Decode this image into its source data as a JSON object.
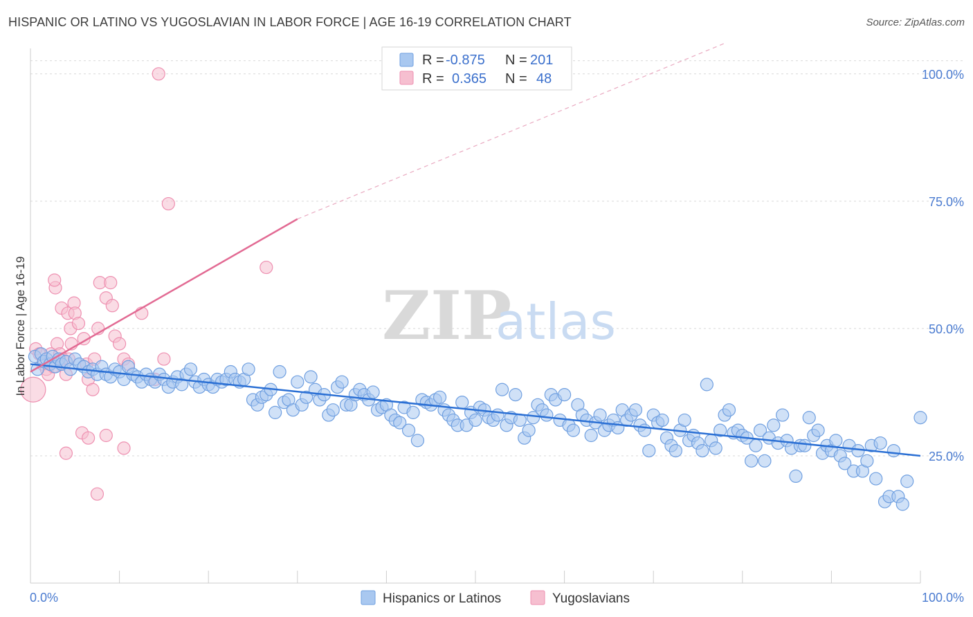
{
  "title": "HISPANIC OR LATINO VS YUGOSLAVIAN IN LABOR FORCE | AGE 16-19 CORRELATION CHART",
  "source": "Source: ZipAtlas.com",
  "watermark": {
    "zip": "ZIP",
    "atlas": "atlas"
  },
  "colors": {
    "blue_fill": "#a9c8f0",
    "blue_stroke": "#6f9fe0",
    "blue_line": "#2a6fd4",
    "pink_fill": "#f6bfd0",
    "pink_stroke": "#ee8fb0",
    "pink_line": "#e26a93",
    "tick_text": "#4a7bd0",
    "grid": "#d8d8d8"
  },
  "legend": {
    "rows": [
      {
        "r_label": "R =",
        "r_value": "-0.875",
        "n_label": "N =",
        "n_value": "201"
      },
      {
        "r_label": "R =",
        "r_value": "0.365",
        "n_label": "N =",
        "n_value": "48"
      }
    ]
  },
  "chart_data": {
    "type": "scatter",
    "ylabel": "In Labor Force | Age 16-19",
    "xlabel": "",
    "xlim": [
      0,
      100
    ],
    "ylim": [
      0,
      105
    ],
    "x_tick_labels": [
      "0.0%",
      "100.0%"
    ],
    "y_ticks": [
      25,
      50,
      75,
      100
    ],
    "y_tick_labels": [
      "25.0%",
      "50.0%",
      "75.0%",
      "100.0%"
    ],
    "grid": true,
    "legend_placement": "top-center",
    "series": [
      {
        "name": "Hispanics or Latinos",
        "trend": {
          "x": [
            0,
            100
          ],
          "y": [
            43.0,
            25.0
          ]
        },
        "points": [
          [
            0.5,
            44.5
          ],
          [
            0.8,
            42
          ],
          [
            1.2,
            45
          ],
          [
            1.5,
            43.5
          ],
          [
            1.8,
            44
          ],
          [
            2.2,
            43
          ],
          [
            2.5,
            44.5
          ],
          [
            2.8,
            42.5
          ],
          [
            3.2,
            44
          ],
          [
            3.5,
            43
          ],
          [
            4,
            43.5
          ],
          [
            4.5,
            42
          ],
          [
            5,
            44
          ],
          [
            5.5,
            43
          ],
          [
            6,
            42.5
          ],
          [
            6.5,
            41.5
          ],
          [
            7,
            42
          ],
          [
            7.5,
            41
          ],
          [
            8,
            42.5
          ],
          [
            8.5,
            41
          ],
          [
            9,
            40.5
          ],
          [
            9.5,
            42
          ],
          [
            10,
            41.5
          ],
          [
            10.5,
            40
          ],
          [
            11,
            42.5
          ],
          [
            11.5,
            41
          ],
          [
            12,
            40.5
          ],
          [
            12.5,
            39.5
          ],
          [
            13,
            41
          ],
          [
            13.5,
            40
          ],
          [
            14,
            39.5
          ],
          [
            14.5,
            41
          ],
          [
            15,
            40
          ],
          [
            15.5,
            38.5
          ],
          [
            16,
            39.5
          ],
          [
            16.5,
            40.5
          ],
          [
            17,
            39
          ],
          [
            17.5,
            41
          ],
          [
            18,
            42
          ],
          [
            18.5,
            39.5
          ],
          [
            19,
            38.5
          ],
          [
            19.5,
            40
          ],
          [
            20,
            39
          ],
          [
            20.5,
            38.5
          ],
          [
            21,
            40
          ],
          [
            21.5,
            39.5
          ],
          [
            22,
            40
          ],
          [
            22.5,
            41.5
          ],
          [
            23,
            40
          ],
          [
            23.5,
            39.5
          ],
          [
            24,
            40
          ],
          [
            24.5,
            42
          ],
          [
            25,
            36
          ],
          [
            25.5,
            35
          ],
          [
            26,
            36.5
          ],
          [
            26.5,
            37
          ],
          [
            27,
            38
          ],
          [
            27.5,
            33.5
          ],
          [
            28,
            41.5
          ],
          [
            28.5,
            35.5
          ],
          [
            29,
            36
          ],
          [
            29.5,
            34
          ],
          [
            30,
            39.5
          ],
          [
            30.5,
            35
          ],
          [
            31,
            36.5
          ],
          [
            31.5,
            40.5
          ],
          [
            32,
            38
          ],
          [
            32.5,
            36
          ],
          [
            33,
            37
          ],
          [
            33.5,
            33
          ],
          [
            34,
            34
          ],
          [
            34.5,
            38.5
          ],
          [
            35,
            39.5
          ],
          [
            35.5,
            35
          ],
          [
            36,
            35
          ],
          [
            36.5,
            37
          ],
          [
            37,
            38
          ],
          [
            37.5,
            37
          ],
          [
            38,
            36
          ],
          [
            38.5,
            37.5
          ],
          [
            39,
            34
          ],
          [
            39.5,
            34.5
          ],
          [
            40,
            35
          ],
          [
            40.5,
            33
          ],
          [
            41,
            32
          ],
          [
            41.5,
            31.5
          ],
          [
            42,
            34.5
          ],
          [
            42.5,
            30
          ],
          [
            43,
            33.5
          ],
          [
            43.5,
            28
          ],
          [
            44,
            36
          ],
          [
            44.5,
            35.5
          ],
          [
            45,
            35
          ],
          [
            45.5,
            36
          ],
          [
            46,
            36.5
          ],
          [
            46.5,
            34
          ],
          [
            47,
            33
          ],
          [
            47.5,
            32
          ],
          [
            48,
            31
          ],
          [
            48.5,
            35.5
          ],
          [
            49,
            31
          ],
          [
            49.5,
            33.5
          ],
          [
            50,
            32
          ],
          [
            50.5,
            34.5
          ],
          [
            51,
            34
          ],
          [
            51.5,
            32.5
          ],
          [
            52,
            32
          ],
          [
            52.5,
            33
          ],
          [
            53,
            38
          ],
          [
            53.5,
            31
          ],
          [
            54,
            32.5
          ],
          [
            54.5,
            37
          ],
          [
            55,
            32
          ],
          [
            55.5,
            28.5
          ],
          [
            56,
            30
          ],
          [
            56.5,
            32.5
          ],
          [
            57,
            35
          ],
          [
            57.5,
            34
          ],
          [
            58,
            33
          ],
          [
            58.5,
            37
          ],
          [
            59,
            36
          ],
          [
            59.5,
            32
          ],
          [
            60,
            37
          ],
          [
            60.5,
            31
          ],
          [
            61,
            30
          ],
          [
            61.5,
            35
          ],
          [
            62,
            33
          ],
          [
            62.5,
            32
          ],
          [
            63,
            29
          ],
          [
            63.5,
            31.5
          ],
          [
            64,
            33
          ],
          [
            64.5,
            30
          ],
          [
            65,
            31
          ],
          [
            65.5,
            32
          ],
          [
            66,
            30.5
          ],
          [
            66.5,
            34
          ],
          [
            67,
            32
          ],
          [
            67.5,
            33
          ],
          [
            68,
            34
          ],
          [
            68.5,
            31
          ],
          [
            69,
            30
          ],
          [
            69.5,
            26
          ],
          [
            70,
            33
          ],
          [
            70.5,
            31.5
          ],
          [
            71,
            32
          ],
          [
            71.5,
            28.5
          ],
          [
            72,
            27
          ],
          [
            72.5,
            26
          ],
          [
            73,
            30
          ],
          [
            73.5,
            32
          ],
          [
            74,
            28
          ],
          [
            74.5,
            29
          ],
          [
            75,
            27.5
          ],
          [
            75.5,
            26
          ],
          [
            76,
            39
          ],
          [
            76.5,
            28
          ],
          [
            77,
            26.5
          ],
          [
            77.5,
            30
          ],
          [
            78,
            33
          ],
          [
            78.5,
            34
          ],
          [
            79,
            29.5
          ],
          [
            79.5,
            30
          ],
          [
            80,
            29
          ],
          [
            80.5,
            28.5
          ],
          [
            81,
            24
          ],
          [
            81.5,
            27
          ],
          [
            82,
            30
          ],
          [
            82.5,
            24
          ],
          [
            83,
            28.5
          ],
          [
            83.5,
            31
          ],
          [
            84,
            27.5
          ],
          [
            84.5,
            33
          ],
          [
            85,
            28
          ],
          [
            85.5,
            26.5
          ],
          [
            86,
            21
          ],
          [
            86.5,
            27
          ],
          [
            87,
            27
          ],
          [
            87.5,
            32.5
          ],
          [
            88,
            29
          ],
          [
            88.5,
            30
          ],
          [
            89,
            25.5
          ],
          [
            89.5,
            27
          ],
          [
            90,
            26
          ],
          [
            90.5,
            28
          ],
          [
            91,
            25
          ],
          [
            91.5,
            23.5
          ],
          [
            92,
            27
          ],
          [
            92.5,
            22
          ],
          [
            93,
            26
          ],
          [
            93.5,
            22
          ],
          [
            94,
            24
          ],
          [
            94.5,
            27
          ],
          [
            95,
            20.5
          ],
          [
            95.5,
            27.5
          ],
          [
            96,
            16
          ],
          [
            96.5,
            17
          ],
          [
            97,
            26
          ],
          [
            97.5,
            17
          ],
          [
            98,
            15.5
          ],
          [
            98.5,
            20
          ],
          [
            100,
            32.5
          ]
        ]
      },
      {
        "name": "Yugoslavians",
        "trend": {
          "x": [
            0,
            30
          ],
          "y": [
            41.5,
            71.5
          ]
        },
        "trend_extension": {
          "x": [
            30,
            78
          ],
          "y": [
            71.5,
            106
          ]
        },
        "points": [
          [
            0.3,
            38
          ],
          [
            0.6,
            46
          ],
          [
            1,
            45
          ],
          [
            1.4,
            43
          ],
          [
            1.8,
            42
          ],
          [
            2,
            41
          ],
          [
            2.3,
            45
          ],
          [
            2.6,
            42.5
          ],
          [
            3,
            47
          ],
          [
            3.3,
            45
          ],
          [
            3.6,
            44
          ],
          [
            4,
            41
          ],
          [
            4.3,
            44
          ],
          [
            2.8,
            58
          ],
          [
            2.7,
            59.5
          ],
          [
            3.5,
            54
          ],
          [
            4.2,
            53
          ],
          [
            4.5,
            50
          ],
          [
            4.6,
            47
          ],
          [
            4.9,
            55
          ],
          [
            5,
            53
          ],
          [
            5.4,
            51
          ],
          [
            6,
            48
          ],
          [
            6.3,
            43
          ],
          [
            6.5,
            40
          ],
          [
            7,
            38
          ],
          [
            7.2,
            44
          ],
          [
            7.6,
            50
          ],
          [
            7.8,
            59
          ],
          [
            8.5,
            56
          ],
          [
            9,
            59
          ],
          [
            9.2,
            54.5
          ],
          [
            9.5,
            48.5
          ],
          [
            10,
            47
          ],
          [
            10.5,
            44
          ],
          [
            11,
            43
          ],
          [
            12.5,
            53
          ],
          [
            14,
            40
          ],
          [
            15,
            44
          ],
          [
            14.4,
            100
          ],
          [
            15.5,
            74.5
          ],
          [
            26.5,
            62
          ],
          [
            4,
            25.5
          ],
          [
            5.8,
            29.5
          ],
          [
            6.5,
            28.5
          ],
          [
            8.5,
            29
          ],
          [
            10.5,
            26.5
          ],
          [
            7.5,
            17.5
          ]
        ]
      }
    ]
  },
  "bottom_legend": [
    "Hispanics or Latinos",
    "Yugoslavians"
  ]
}
